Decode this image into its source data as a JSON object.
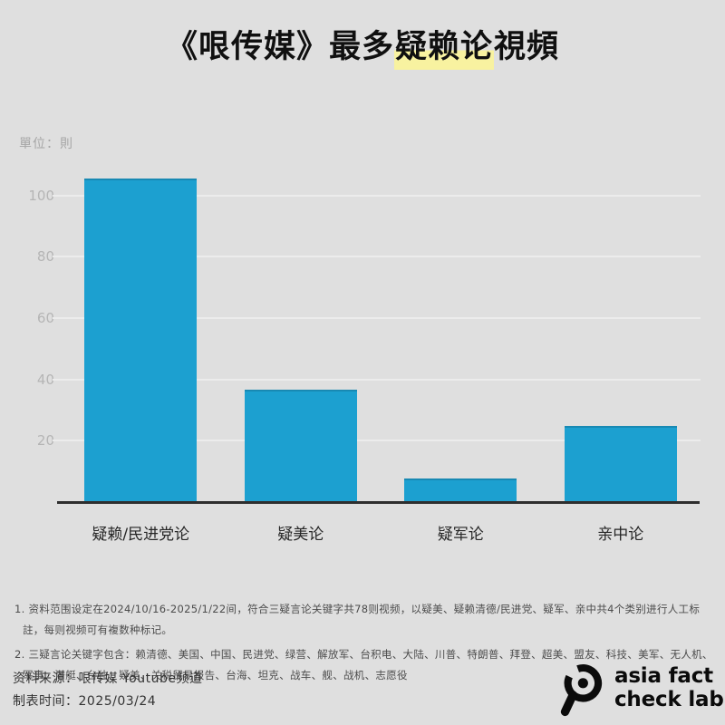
{
  "title": {
    "prefix": "《哏传媒》最多",
    "highlight": "疑赖论",
    "suffix": "視頻"
  },
  "unit_label": "單位：則",
  "chart_data": {
    "type": "bar",
    "title": "《哏传媒》最多疑赖论視頻",
    "unit": "單位：則",
    "categories": [
      "疑赖/民进党论",
      "疑美论",
      "疑军论",
      "亲中论"
    ],
    "values": [
      106,
      37,
      8,
      25
    ],
    "xlabel": "",
    "ylabel": "單位：則",
    "yticks": [
      20,
      40,
      60,
      80,
      100
    ],
    "ylim": [
      0,
      110
    ],
    "grid": true,
    "legend": "none",
    "bar_color": "#1ca0d0"
  },
  "footnotes": [
    "1. 资料范围设定在2024/10/16-2025/1/22间，符合三疑言论关键字共78则视频，以疑美、疑赖清德/民进党、疑军、亲中共4个类别进行人工标註，每则视频可有複数种标记。",
    "2. 三疑言论关键字包含：赖清德、美国、中国、民进党、绿营、解放军、台积电、大陆、川普、特朗普、拜登、超美、盟友、科技、美军、无人机、军事、潜艇、台独、疑美、关税贸易报告、台海、坦克、战车、舰、战机、志愿役"
  ],
  "source": {
    "source_line": "资料来源：哏传媒 Youtube频道",
    "date_line": "制表时间：2025/03/24"
  },
  "logo": {
    "icon": "magnifier-icon",
    "line1": "asia fact",
    "line2": "check lab"
  },
  "colors": {
    "background": "#dfdfdf",
    "bar": "#1ca0d0",
    "bar_top_edge": "#1889b3",
    "title_highlight": "#f8f2a0",
    "axis": "#2e2e2e",
    "gridline": "#ececec",
    "tick_label": "#b5b5b5",
    "footnote_text": "#4c4c4c",
    "title_text": "#101010"
  }
}
